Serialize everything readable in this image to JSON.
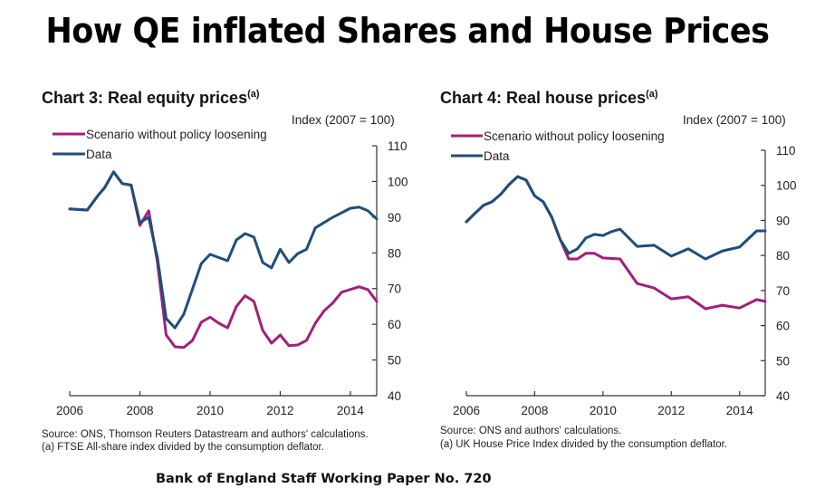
{
  "page": {
    "title": "How QE inflated Shares and House Prices",
    "footer": "Bank of England Staff Working Paper No. 720"
  },
  "colors": {
    "scenario": "#A0207A",
    "data": "#1F4E79"
  },
  "chart_data": [
    {
      "type": "line",
      "title": "Chart 3: Real equity prices",
      "title_superscript": "(a)",
      "ylabel": "Index (2007 = 100)",
      "xlabel": "",
      "xlim": [
        2006,
        2014.75
      ],
      "ylim": [
        40,
        110
      ],
      "yticks": [
        40,
        50,
        60,
        70,
        80,
        90,
        100,
        110
      ],
      "xticks": [
        2006,
        2008,
        2010,
        2012,
        2014
      ],
      "y_axis_side": "right",
      "grid": false,
      "legend_position": "top-left",
      "legend": [
        "Scenario without policy loosening",
        "Data"
      ],
      "series": [
        {
          "name": "Scenario without policy loosening",
          "color": "#A0207A",
          "x": [
            2006,
            2006.5,
            2006.8,
            2007,
            2007.25,
            2007.5,
            2007.75,
            2008,
            2008.25,
            2008.5,
            2008.75,
            2009,
            2009.25,
            2009.5,
            2009.75,
            2010,
            2010.25,
            2010.5,
            2010.75,
            2011,
            2011.25,
            2011.5,
            2011.75,
            2012,
            2012.25,
            2012.5,
            2012.75,
            2013,
            2013.25,
            2013.5,
            2013.75,
            2014.25,
            2014.5,
            2014.75
          ],
          "values": [
            92.3,
            92,
            96,
            98.3,
            102.7,
            99.4,
            99,
            87.7,
            91.8,
            77.3,
            57,
            53.7,
            53.5,
            55.5,
            60.6,
            62,
            60.3,
            59,
            65,
            68,
            66.4,
            58.3,
            54.7,
            57,
            54,
            54.2,
            55.5,
            60.3,
            63.8,
            66,
            69,
            70.5,
            69.7,
            66.4
          ]
        },
        {
          "name": "Data",
          "color": "#1F4E79",
          "x": [
            2006,
            2006.5,
            2006.8,
            2007,
            2007.25,
            2007.5,
            2007.75,
            2008,
            2008.25,
            2008.5,
            2008.75,
            2009,
            2009.25,
            2009.75,
            2010,
            2010.5,
            2010.75,
            2011,
            2011.25,
            2011.5,
            2011.75,
            2012,
            2012.25,
            2012.5,
            2012.75,
            2013,
            2013.5,
            2014,
            2014.25,
            2014.5,
            2014.75
          ],
          "values": [
            92.3,
            92,
            96,
            98.3,
            102.7,
            99.4,
            99,
            88.5,
            90,
            78.6,
            61.6,
            59,
            62.8,
            77,
            79.6,
            77.8,
            83.6,
            85.4,
            84.4,
            77.3,
            75.8,
            81,
            77.3,
            79.8,
            81,
            87,
            90,
            92.5,
            92.8,
            91.8,
            89.5
          ]
        }
      ],
      "notes": [
        "Source: ONS, Thomson Reuters Datastream and authors' calculations.",
        "(a)  FTSE All-share index divided by the consumption deflator."
      ]
    },
    {
      "type": "line",
      "title": "Chart 4: Real house prices",
      "title_superscript": "(a)",
      "ylabel": "Index (2007 = 100)",
      "xlabel": "",
      "xlim": [
        2006,
        2014.75
      ],
      "ylim": [
        40,
        110
      ],
      "yticks": [
        40,
        50,
        60,
        70,
        80,
        90,
        100,
        110
      ],
      "xticks": [
        2006,
        2008,
        2010,
        2012,
        2014
      ],
      "y_axis_side": "right",
      "grid": false,
      "legend_position": "top-left",
      "legend": [
        "Scenario without policy loosening",
        "Data"
      ],
      "series": [
        {
          "name": "Scenario without policy loosening",
          "color": "#A0207A",
          "x": [
            2006,
            2006.25,
            2006.5,
            2006.75,
            2007,
            2007.25,
            2007.5,
            2007.75,
            2008,
            2008.25,
            2008.5,
            2008.75,
            2009,
            2009.25,
            2009.5,
            2009.75,
            2010,
            2010.5,
            2011,
            2011.5,
            2012,
            2012.5,
            2013,
            2013.5,
            2014,
            2014.5,
            2014.75
          ],
          "values": [
            89.6,
            92,
            94.3,
            95.3,
            97.4,
            100.2,
            102.5,
            101.5,
            97,
            95.3,
            90.9,
            84.5,
            79,
            79,
            80.6,
            80.6,
            79.3,
            79,
            72,
            70.7,
            67.6,
            68.2,
            64.8,
            65.8,
            65,
            67.4,
            66.9
          ]
        },
        {
          "name": "Data",
          "color": "#1F4E79",
          "x": [
            2006,
            2006.25,
            2006.5,
            2006.75,
            2007,
            2007.25,
            2007.5,
            2007.75,
            2008,
            2008.25,
            2008.5,
            2008.75,
            2009,
            2009.25,
            2009.5,
            2009.75,
            2010,
            2010.25,
            2010.5,
            2011,
            2011.5,
            2012,
            2012.5,
            2013,
            2013.5,
            2014,
            2014.5,
            2014.75
          ],
          "values": [
            89.6,
            92,
            94.3,
            95.3,
            97.4,
            100.2,
            102.5,
            101.5,
            97,
            95.3,
            90.9,
            84.5,
            80.6,
            81.9,
            85,
            86,
            85.7,
            86.8,
            87.5,
            82.6,
            82.9,
            79.8,
            81.9,
            79,
            81.3,
            82.4,
            87,
            87
          ]
        }
      ],
      "notes": [
        "Source: ONS and authors' calculations.",
        "(a)  UK House Price Index divided by the consumption deflator."
      ]
    }
  ]
}
